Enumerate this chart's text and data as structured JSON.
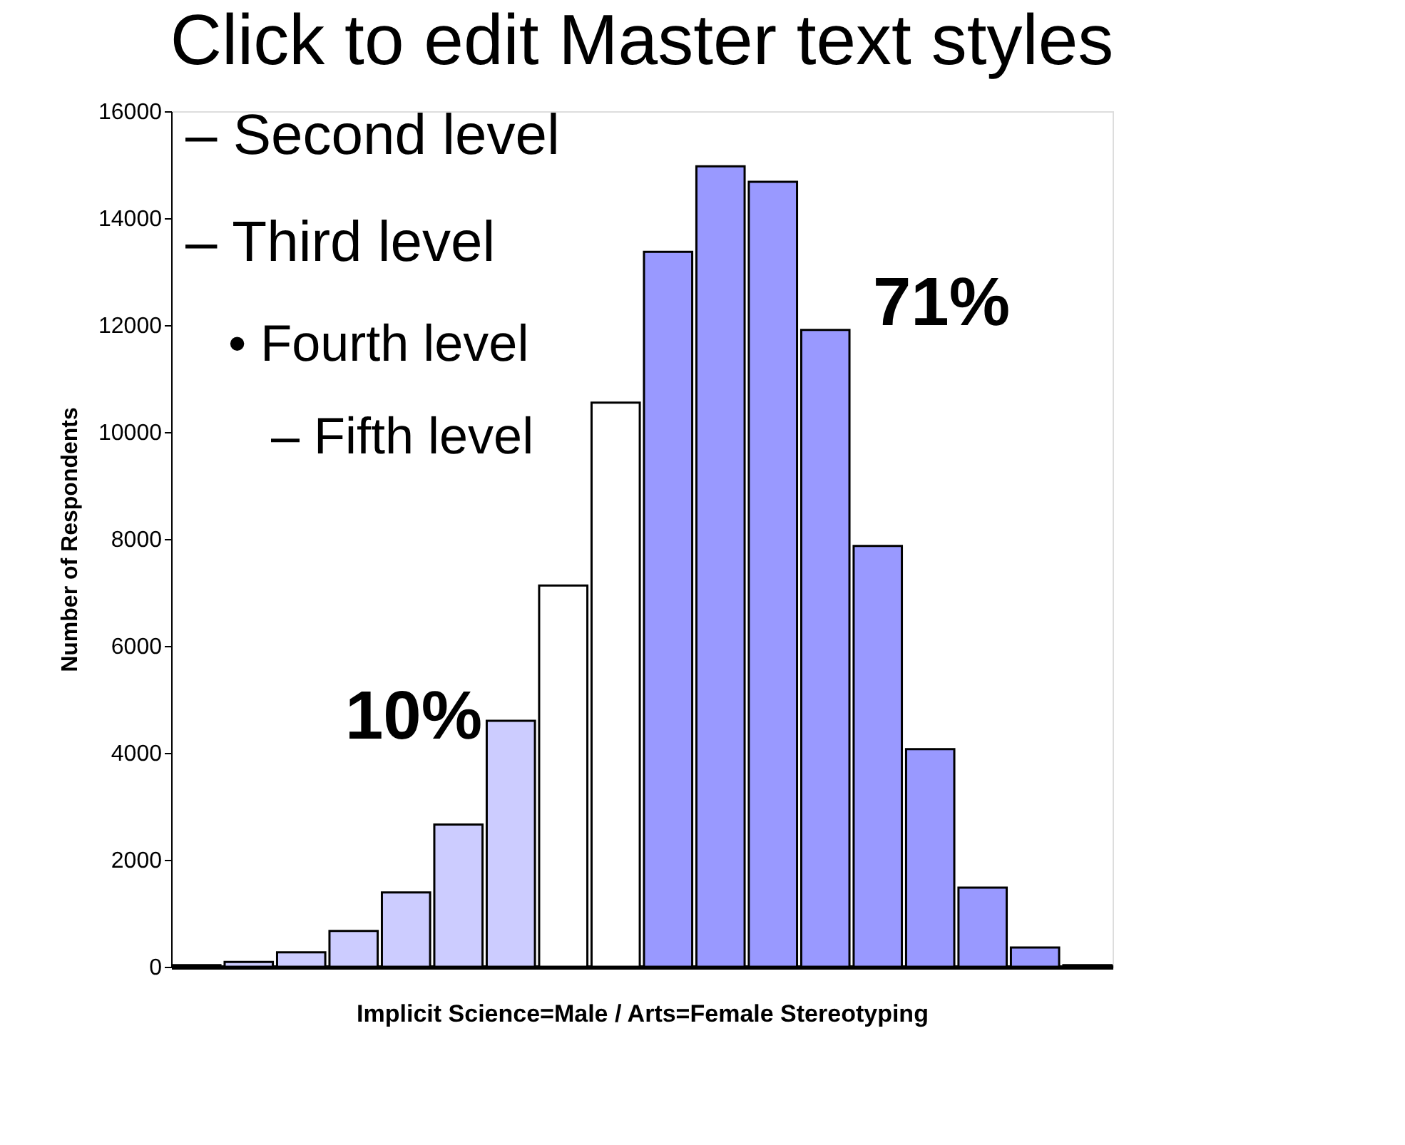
{
  "chart_data": {
    "type": "bar",
    "title": "Click to edit Master text styles",
    "xlabel": "Implicit Science=Male / Arts=Female Stereotyping",
    "ylabel": "Number of Respondents",
    "categories": [
      null,
      null,
      null,
      null,
      null,
      null,
      null,
      null,
      null,
      null,
      null,
      null,
      null,
      null,
      null,
      null,
      null,
      null
    ],
    "values": [
      30,
      90,
      270,
      670,
      1390,
      2660,
      4600,
      7130,
      10550,
      13370,
      14970,
      14680,
      11910,
      7870,
      4070,
      1480,
      360,
      30
    ],
    "colors": [
      "#ccccff",
      "#ccccff",
      "#ccccff",
      "#ccccff",
      "#ccccff",
      "#ccccff",
      "#ccccff",
      "#ffffff",
      "#ffffff",
      "#9999ff",
      "#9999ff",
      "#9999ff",
      "#9999ff",
      "#9999ff",
      "#9999ff",
      "#9999ff",
      "#9999ff",
      "#9999ff"
    ],
    "ylim": [
      0,
      16000
    ],
    "yticks": [
      0,
      2000,
      4000,
      6000,
      8000,
      10000,
      12000,
      14000,
      16000
    ],
    "tick_labels": "y",
    "annotations": [
      "10%",
      "71%",
      "– Second level",
      "– Third level",
      "• Fourth level",
      "– Fifth level"
    ]
  }
}
